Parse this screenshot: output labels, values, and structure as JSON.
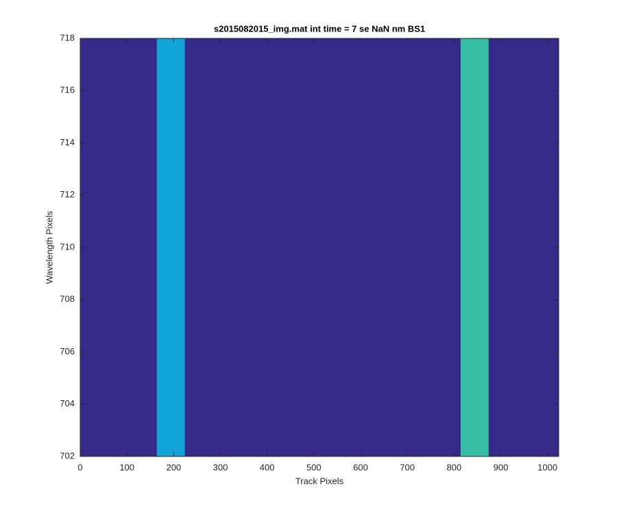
{
  "chart_data": {
    "type": "image",
    "title": "s2015082015_img.mat int time = 7 se  NaN nm BS1",
    "x_label": "Track Pixels",
    "y_label": "Wavelength Pixels",
    "background_color": "#352a87",
    "bands": [
      {
        "x": [
          164,
          224
        ],
        "color": "#12a3d9"
      },
      {
        "x": [
          814,
          874
        ],
        "color": "#35bea3"
      }
    ],
    "xlim": [
      0,
      1024
    ],
    "xticks": [
      0,
      100,
      200,
      300,
      400,
      500,
      600,
      700,
      800,
      900,
      1000
    ],
    "ylim": [
      702,
      718
    ],
    "yticks": [
      702,
      704,
      706,
      708,
      710,
      712,
      714,
      716,
      718
    ]
  }
}
